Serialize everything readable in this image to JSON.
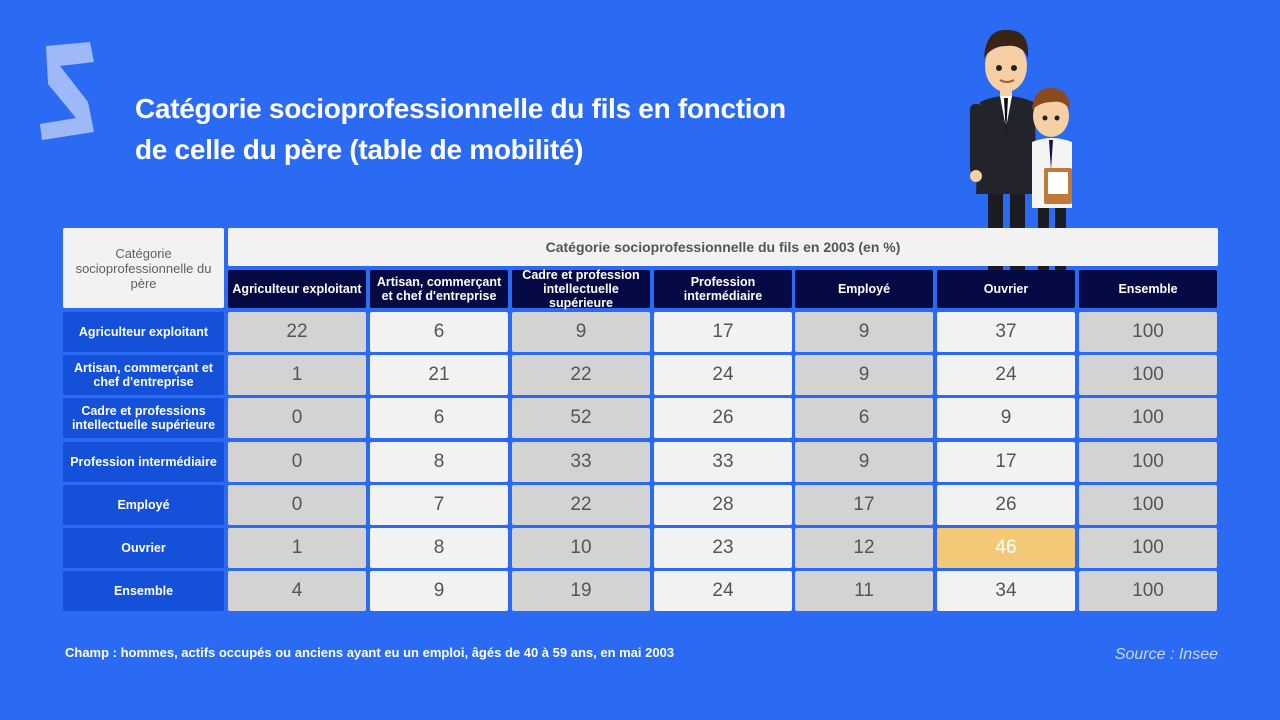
{
  "title_line1": "Catégorie socioprofessionnelle du fils en fonction",
  "title_line2": "de celle du père (table de mobilité)",
  "note": "Champ : hommes, actifs occupés ou anciens ayant eu un emploi, âgés de 40 à 59 ans, en mai 2003",
  "source": "Source : Insee",
  "colors": {
    "background": "#2b6bf3",
    "header_dark": "#050a45",
    "row_head": "#1450d8",
    "highlight": "#f3c978"
  },
  "chart_data": {
    "type": "table",
    "title": "Catégorie socioprofessionnelle du fils en fonction de celle du père (table de mobilité)",
    "corner_label": "Catégorie socioprofessionnelle du père",
    "column_group_label": "Catégorie socioprofessionnelle du fils en 2003 (en %)",
    "columns": [
      "Agriculteur exploitant",
      "Artisan, commerçant et chef d'entreprise",
      "Cadre et profession intellectuelle supérieure",
      "Profession intermédiaire",
      "Employé",
      "Ouvrier",
      "Ensemble"
    ],
    "rows": [
      {
        "label": "Agriculteur exploitant",
        "values": [
          22,
          6,
          9,
          17,
          9,
          37,
          100
        ]
      },
      {
        "label": "Artisan, commerçant et chef d'entreprise",
        "values": [
          1,
          21,
          22,
          24,
          9,
          24,
          100
        ]
      },
      {
        "label": "Cadre et professions intellectuelle supérieure",
        "values": [
          0,
          6,
          52,
          26,
          6,
          9,
          100
        ]
      },
      {
        "label": "Profession intermédiaire",
        "values": [
          0,
          8,
          33,
          33,
          9,
          17,
          100
        ]
      },
      {
        "label": "Employé",
        "values": [
          0,
          7,
          22,
          28,
          17,
          26,
          100
        ]
      },
      {
        "label": "Ouvrier",
        "values": [
          1,
          8,
          10,
          23,
          12,
          46,
          100
        ]
      },
      {
        "label": "Ensemble",
        "values": [
          4,
          9,
          19,
          24,
          11,
          34,
          100
        ]
      }
    ],
    "highlight": {
      "row": 5,
      "col": 5
    }
  }
}
